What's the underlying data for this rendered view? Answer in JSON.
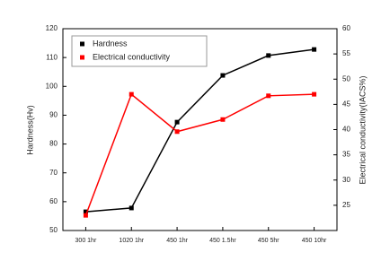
{
  "chart_data": {
    "type": "line",
    "categories": [
      "300 1hr",
      "1020 1hr",
      "450 1hr",
      "450 1.5hr",
      "450 5hr",
      "450 10hr"
    ],
    "series": [
      {
        "name": "Hardness",
        "color": "#000000",
        "values": [
          56.5,
          57.8,
          87.6,
          103.8,
          110.7,
          112.8
        ]
      },
      {
        "name": "Electrical conductivity",
        "color": "#ff0000",
        "axis": "y2",
        "values": [
          23.0,
          47.0,
          39.6,
          42.0,
          46.7,
          47.0
        ]
      }
    ],
    "y_label": "Hardness(Hv)",
    "y2_label": "Electrical conductivity(IACS%)",
    "ylim": [
      50,
      120
    ],
    "yticks": [
      50,
      60,
      70,
      80,
      90,
      100,
      110,
      120
    ],
    "y2lim": [
      20,
      60
    ],
    "y2ticks": [
      25,
      30,
      35,
      40,
      45,
      50,
      55,
      60
    ],
    "legend": "upper left"
  }
}
